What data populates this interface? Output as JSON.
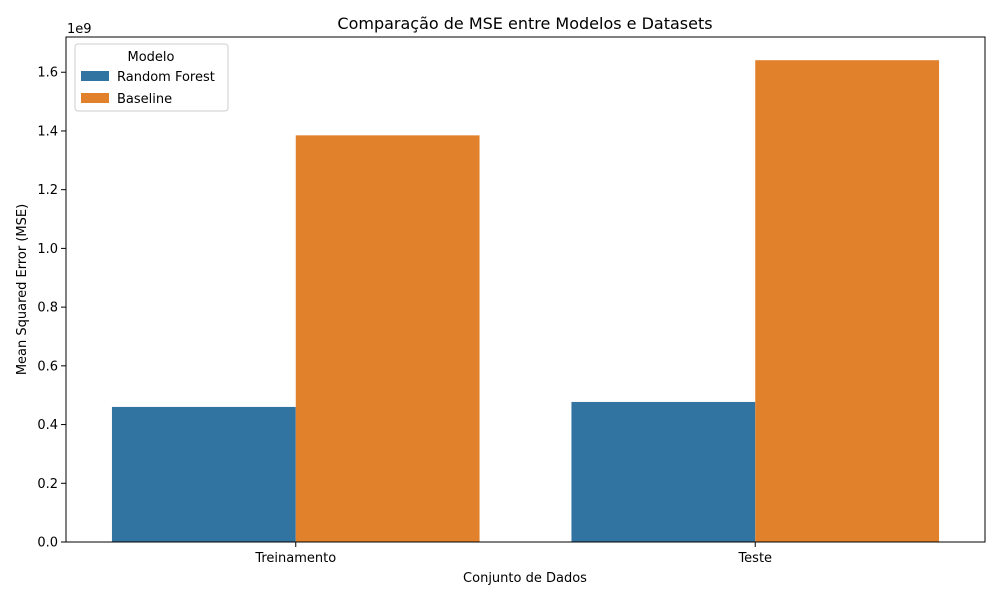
{
  "chart_data": {
    "type": "bar",
    "title": "Comparação de MSE entre Modelos e Datasets",
    "xlabel": "Conjunto de Dados",
    "ylabel": "Mean Squared Error (MSE)",
    "y_offset_label": "1e9",
    "categories": [
      "Treinamento",
      "Teste"
    ],
    "series": [
      {
        "name": "Random Forest",
        "color": "#3274a1",
        "values": [
          460000000,
          477000000
        ]
      },
      {
        "name": "Baseline",
        "color": "#e1812c",
        "values": [
          1385000000,
          1641000000
        ]
      }
    ],
    "ylim": [
      0,
      1720000000
    ],
    "yticks": [
      0,
      200000000,
      400000000,
      600000000,
      800000000,
      1000000000,
      1200000000,
      1400000000,
      1600000000
    ],
    "ytick_labels": [
      "0.0",
      "0.2",
      "0.4",
      "0.6",
      "0.8",
      "1.0",
      "1.2",
      "1.4",
      "1.6"
    ],
    "legend": {
      "title": "Modelo",
      "placement": "top-left"
    },
    "grid": false
  }
}
